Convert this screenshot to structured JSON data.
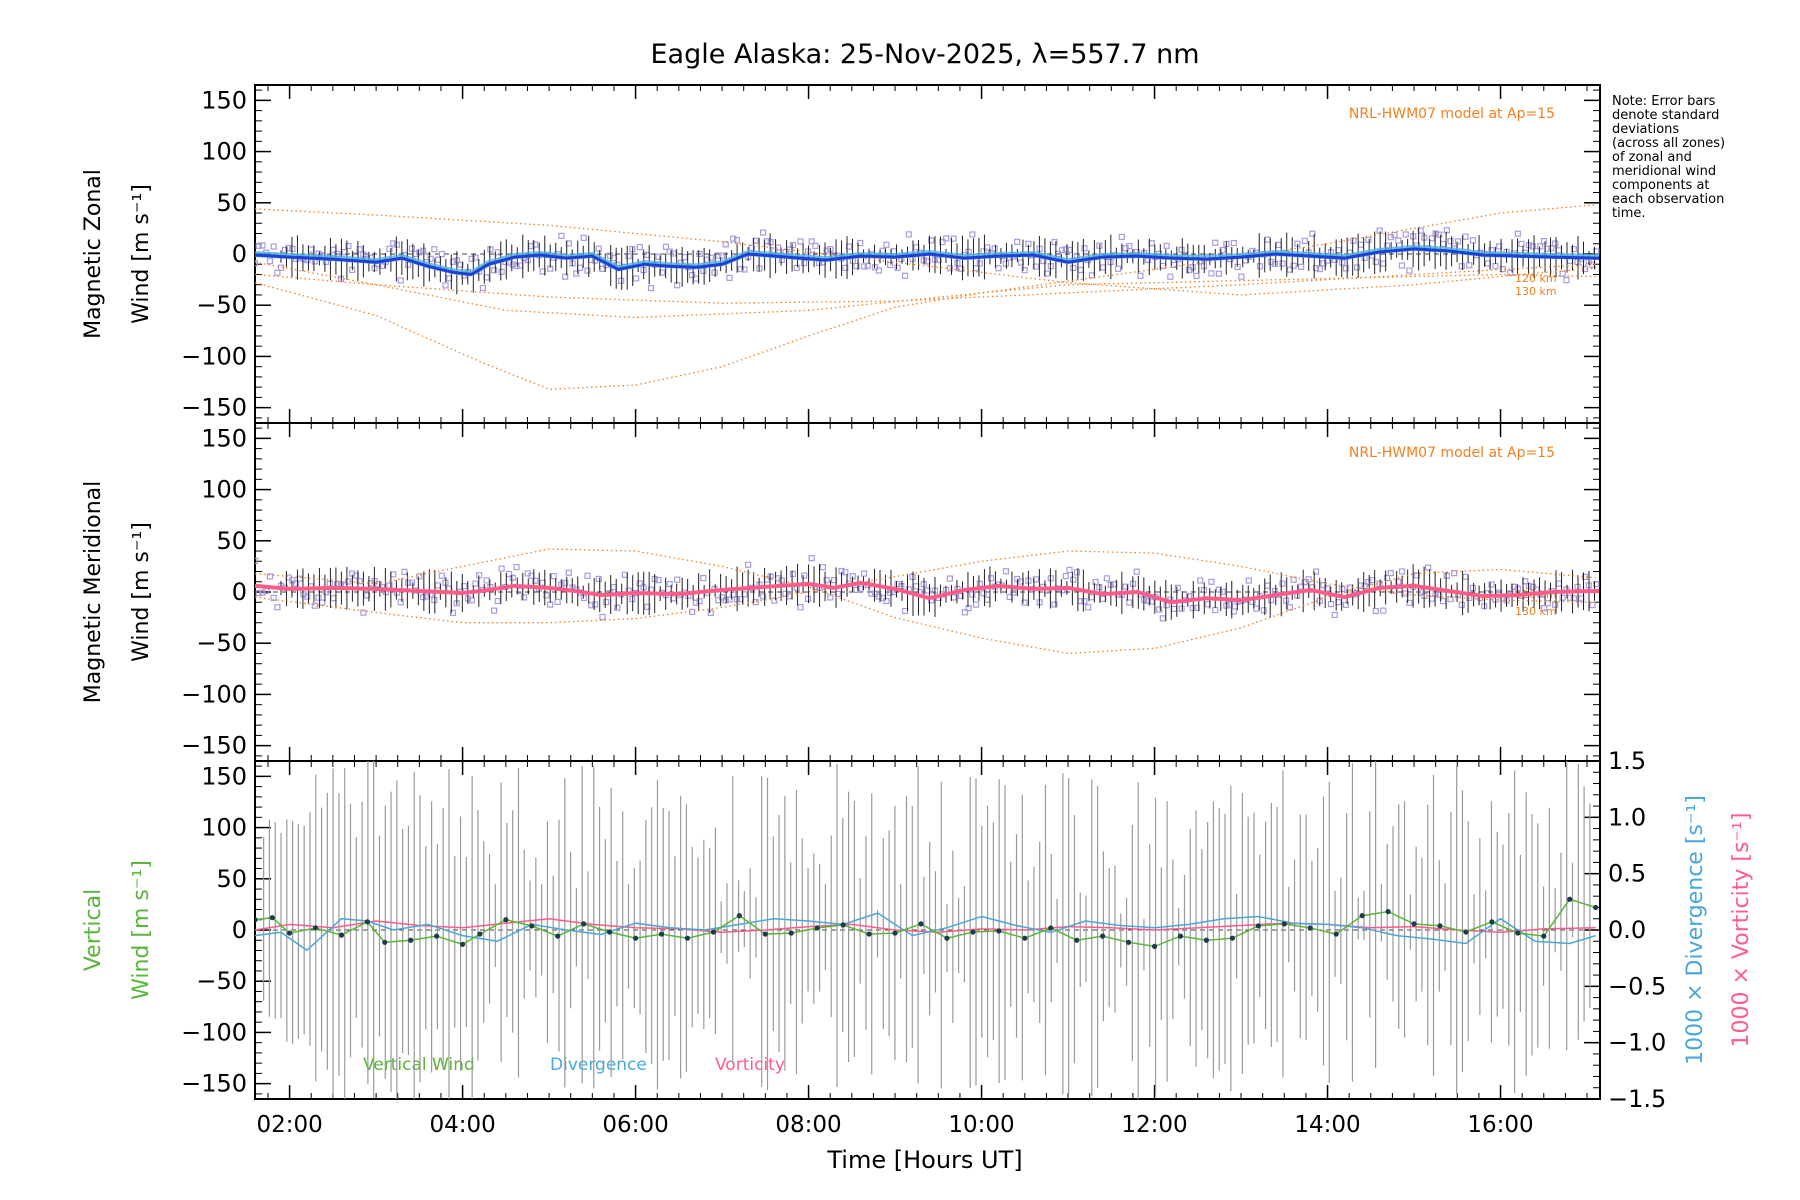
{
  "chart_data": {
    "title": "Eagle Alaska: 25-Nov-2025, λ=557.7 nm",
    "xlabel": "Time [Hours UT]",
    "xlim": [
      1.6,
      17.15
    ],
    "xticks": [
      "02:00",
      "04:00",
      "06:00",
      "08:00",
      "10:00",
      "12:00",
      "14:00",
      "16:00"
    ],
    "xtick_values": [
      2,
      4,
      6,
      8,
      10,
      12,
      14,
      16
    ],
    "note": [
      "Note: Error bars",
      "denote standard",
      "deviations",
      "(across all zones)",
      "of zonal and",
      "meridional wind",
      "components at",
      "each observation",
      "time."
    ],
    "colors": {
      "zonal": "#1f3fd6",
      "zonal_light": "#4ab0e0",
      "meridional": "#ff5c8a",
      "model": "#f08020",
      "scatter": "#a99be0",
      "errbar": "#222222",
      "vertical": "#5ab53a",
      "divergence": "#4aa8d8",
      "vorticity": "#ff5c8a",
      "grey": "#9a9a9a"
    },
    "panels": [
      {
        "id": "zonal",
        "type": "line",
        "ylabel": [
          "Magnetic Zonal",
          "Wind [m s⁻¹]"
        ],
        "ylim": [
          -165,
          165
        ],
        "yticks": [
          150,
          100,
          50,
          0,
          -50,
          -100,
          -150
        ],
        "model_label": "NRL-HWM07 model at Ap=15",
        "model_alt_labels": [
          "120 km",
          "130 km"
        ],
        "series": [
          {
            "name": "zonal wind",
            "x": [
              1.6,
              2.0,
              2.5,
              3.0,
              3.3,
              3.6,
              3.9,
              4.1,
              4.3,
              4.6,
              4.9,
              5.2,
              5.5,
              5.8,
              6.1,
              6.4,
              6.7,
              7.0,
              7.3,
              7.6,
              7.9,
              8.2,
              8.6,
              9.0,
              9.4,
              9.8,
              10.2,
              10.6,
              11.0,
              11.4,
              11.8,
              12.2,
              12.6,
              13.0,
              13.4,
              13.8,
              14.2,
              14.6,
              15.0,
              15.4,
              15.8,
              16.2,
              16.6,
              17.1
            ],
            "values": [
              -1,
              -3,
              -5,
              -8,
              -4,
              -12,
              -18,
              -20,
              -10,
              -3,
              -1,
              -4,
              -2,
              -15,
              -10,
              -12,
              -13,
              -10,
              0,
              -2,
              -4,
              -6,
              -2,
              -3,
              0,
              -4,
              -2,
              -1,
              -8,
              -3,
              -2,
              -4,
              -5,
              -3,
              0,
              -2,
              -4,
              2,
              5,
              3,
              -1,
              -2,
              -3,
              -4
            ]
          },
          {
            "name": "model 120 km a",
            "x": [
              1.6,
              3,
              5,
              7,
              9,
              11,
              13,
              15,
              16.5,
              17.1
            ],
            "values": [
              44,
              38,
              28,
              12,
              -8,
              -28,
              -40,
              -30,
              -18,
              -14
            ]
          },
          {
            "name": "model 130 km a",
            "x": [
              1.6,
              3,
              4.5,
              6,
              8,
              10,
              12,
              14,
              16,
              17.1
            ],
            "values": [
              -8,
              -30,
              -55,
              -62,
              -55,
              -38,
              -15,
              10,
              40,
              48
            ]
          },
          {
            "name": "model 120 km b",
            "x": [
              1.6,
              3,
              4.2,
              5,
              6,
              7,
              8,
              9,
              10,
              11,
              12,
              13,
              14,
              15,
              16,
              17.1
            ],
            "values": [
              -28,
              -60,
              -105,
              -132,
              -128,
              -110,
              -80,
              -52,
              -38,
              -30,
              -28,
              -26,
              -24,
              -22,
              -20,
              -22
            ]
          },
          {
            "name": "model 130 km b",
            "x": [
              1.6,
              3,
              5,
              7,
              9,
              11,
              13,
              15,
              17.1
            ],
            "values": [
              -20,
              -30,
              -42,
              -48,
              -46,
              -38,
              -30,
              -20,
              -10
            ]
          }
        ]
      },
      {
        "id": "meridional",
        "type": "line",
        "ylabel": [
          "Magnetic Meridional",
          "Wind [m s⁻¹]"
        ],
        "ylim": [
          -165,
          165
        ],
        "yticks": [
          150,
          100,
          50,
          0,
          -50,
          -100,
          -150
        ],
        "model_label": "NRL-HWM07 model at Ap=15",
        "model_alt_labels": [
          "120 km",
          "130 km"
        ],
        "series": [
          {
            "name": "meridional wind",
            "x": [
              1.6,
              2.0,
              2.5,
              3.0,
              3.5,
              4.0,
              4.3,
              4.6,
              5.0,
              5.3,
              5.6,
              6.0,
              6.5,
              7.0,
              7.5,
              8.0,
              8.3,
              8.6,
              9.0,
              9.4,
              9.8,
              10.2,
              10.6,
              11.0,
              11.4,
              11.8,
              12.2,
              12.6,
              13.0,
              13.4,
              13.8,
              14.2,
              14.6,
              15.0,
              15.4,
              15.8,
              16.2,
              16.6,
              17.1
            ],
            "values": [
              6,
              3,
              4,
              3,
              1,
              -1,
              2,
              6,
              4,
              1,
              -3,
              -1,
              -2,
              2,
              5,
              8,
              4,
              9,
              3,
              -6,
              2,
              6,
              3,
              4,
              -2,
              0,
              -10,
              -6,
              -8,
              -3,
              2,
              -5,
              4,
              6,
              1,
              -4,
              -3,
              0,
              1
            ]
          },
          {
            "name": "model 120 km a",
            "x": [
              1.6,
              3,
              4,
              5,
              6,
              7,
              8,
              9,
              10,
              11,
              12,
              13,
              14,
              15,
              16,
              17.1
            ],
            "values": [
              18,
              8,
              25,
              42,
              40,
              25,
              5,
              -25,
              -45,
              -60,
              -55,
              -35,
              -5,
              18,
              22,
              14
            ]
          },
          {
            "name": "model 130 km a",
            "x": [
              1.6,
              3,
              4,
              5,
              6,
              7,
              8,
              9,
              10,
              11,
              12,
              13,
              14,
              15,
              16,
              17.1
            ],
            "values": [
              -5,
              -20,
              -30,
              -30,
              -26,
              -15,
              0,
              15,
              30,
              40,
              38,
              25,
              8,
              -3,
              -8,
              -10
            ]
          }
        ]
      },
      {
        "id": "vertical",
        "type": "line",
        "ylabel": [
          "Vertical",
          "Wind [m s⁻¹]"
        ],
        "ylim": [
          -165,
          165
        ],
        "yticks": [
          150,
          100,
          50,
          0,
          -50,
          -100,
          -150
        ],
        "right_ylim": [
          -1.5,
          1.5
        ],
        "right_yticks": [
          "1.5",
          "1.0",
          "0.5",
          "0.0",
          "−0.5",
          "−1.0",
          "−1.5"
        ],
        "right_ytick_values": [
          1.5,
          1.0,
          0.5,
          0.0,
          -0.5,
          -1.0,
          -1.5
        ],
        "right_ylabel_div": "1000 × Divergence [s⁻¹]",
        "right_ylabel_vort": "1000 × Vorticity [s⁻¹]",
        "legend": [
          "Vertical Wind",
          "Divergence",
          "Vorticity"
        ],
        "series": [
          {
            "name": "Vertical Wind",
            "x": [
              1.6,
              1.8,
              2.0,
              2.3,
              2.6,
              2.9,
              3.1,
              3.4,
              3.7,
              4.0,
              4.2,
              4.5,
              4.8,
              5.1,
              5.4,
              5.7,
              6.0,
              6.3,
              6.6,
              6.9,
              7.2,
              7.5,
              7.8,
              8.1,
              8.4,
              8.7,
              9.0,
              9.3,
              9.6,
              9.9,
              10.2,
              10.5,
              10.8,
              11.1,
              11.4,
              11.7,
              12.0,
              12.3,
              12.6,
              12.9,
              13.2,
              13.5,
              13.8,
              14.1,
              14.4,
              14.7,
              15.0,
              15.3,
              15.6,
              15.9,
              16.2,
              16.5,
              16.8,
              17.1
            ],
            "values": [
              10,
              12,
              -3,
              2,
              -5,
              8,
              -12,
              -10,
              -6,
              -14,
              -4,
              10,
              4,
              -6,
              6,
              -2,
              -8,
              -4,
              -8,
              -2,
              14,
              -4,
              -3,
              2,
              5,
              -4,
              -3,
              6,
              -8,
              -2,
              -1,
              -8,
              2,
              -10,
              -6,
              -12,
              -16,
              -6,
              -10,
              -8,
              4,
              6,
              2,
              -4,
              14,
              18,
              6,
              4,
              -2,
              8,
              -3,
              -6,
              30,
              22
            ]
          },
          {
            "name": "Divergence",
            "x": [
              1.6,
              1.9,
              2.2,
              2.6,
              2.9,
              3.2,
              3.6,
              4.0,
              4.4,
              4.8,
              5.2,
              5.6,
              6.0,
              6.4,
              6.8,
              7.2,
              7.6,
              8.0,
              8.4,
              8.8,
              9.2,
              9.6,
              10.0,
              10.4,
              10.8,
              11.2,
              11.6,
              12.0,
              12.4,
              12.8,
              13.2,
              13.6,
              14.0,
              14.4,
              14.8,
              15.2,
              15.6,
              16.0,
              16.4,
              16.8,
              17.1
            ],
            "values": [
              -0.05,
              -0.02,
              -0.18,
              0.1,
              0.08,
              0.0,
              0.05,
              -0.05,
              -0.1,
              0.05,
              0.0,
              -0.04,
              0.06,
              0.02,
              0.0,
              0.05,
              0.1,
              0.08,
              0.05,
              0.15,
              -0.05,
              0.02,
              0.12,
              0.04,
              -0.02,
              0.08,
              0.04,
              0.02,
              0.05,
              0.1,
              0.12,
              0.06,
              0.05,
              0.02,
              -0.05,
              -0.08,
              -0.12,
              0.1,
              -0.1,
              -0.12,
              -0.05
            ]
          },
          {
            "name": "Vorticity",
            "x": [
              1.6,
              2.0,
              2.5,
              3.0,
              3.5,
              4.0,
              4.5,
              5.0,
              5.5,
              6.0,
              6.5,
              7.0,
              7.5,
              8.0,
              8.5,
              9.0,
              9.5,
              10.0,
              10.5,
              11.0,
              11.5,
              12.0,
              12.5,
              13.0,
              13.5,
              14.0,
              14.5,
              15.0,
              15.5,
              16.0,
              16.5,
              17.1
            ],
            "values": [
              0.0,
              0.05,
              0.02,
              0.08,
              0.04,
              0.02,
              0.06,
              0.1,
              0.05,
              0.02,
              0.01,
              -0.02,
              0.0,
              0.03,
              0.05,
              0.0,
              -0.02,
              0.01,
              0.0,
              0.03,
              0.02,
              0.0,
              0.02,
              0.04,
              0.06,
              0.05,
              0.02,
              0.03,
              0.0,
              -0.02,
              0.01,
              0.02
            ]
          }
        ]
      }
    ]
  }
}
